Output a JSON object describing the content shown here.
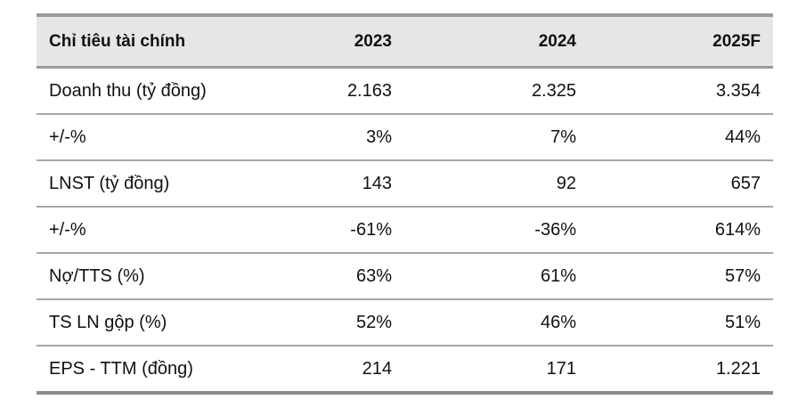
{
  "table": {
    "headers": [
      "Chỉ tiêu tài chính",
      "2023",
      "2024",
      "2025F"
    ],
    "rows": [
      [
        "Doanh thu (tỷ đồng)",
        "2.163",
        "2.325",
        "3.354"
      ],
      [
        "+/-%",
        "3%",
        "7%",
        "44%"
      ],
      [
        "LNST (tỷ đồng)",
        "143",
        "92",
        "657"
      ],
      [
        "+/-%",
        "-61%",
        "-36%",
        "614%"
      ],
      [
        "Nợ/TTS (%)",
        "63%",
        "61%",
        "57%"
      ],
      [
        "TS LN gộp (%)",
        "52%",
        "46%",
        "51%"
      ],
      [
        "EPS - TTM (đồng)",
        "214",
        "171",
        "1.221"
      ]
    ]
  },
  "colors": {
    "header_background": "#e6e6e6",
    "rule_color": "#9a9a9a"
  }
}
